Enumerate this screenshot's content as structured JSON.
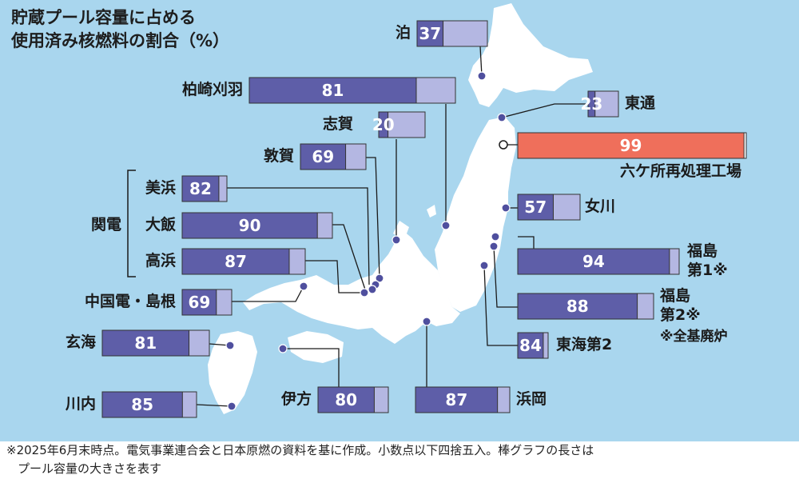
{
  "title_line1": "貯蔵プール容量に占める",
  "title_line2": "使用済み核燃料の割合（%）",
  "kanden_group_label": "関電",
  "footnote_scope": "※全基廃炉",
  "footer_line1": "※2025年6月末時点。電気事業連合会と日本原燃の資料を基に作成。小数点以下四捨五入。棒グラフの長さは",
  "footer_line2": "プール容量の大きさを表す",
  "colors": {
    "sea": "#a9d6ee",
    "land": "#ffffff",
    "used": "#5e5ea8",
    "free": "#b4b7e2",
    "highlight": "#ef6f5b"
  },
  "chart_data": {
    "type": "bar",
    "title": "貯蔵プール容量に占める使用済み核燃料の割合（%）",
    "unit": "%",
    "categories": [
      "泊",
      "柏崎刈羽",
      "志賀",
      "敦賀",
      "美浜",
      "大飯",
      "高浜",
      "中国電・島根",
      "玄海",
      "川内",
      "伊方",
      "東通",
      "六ケ所再処理工場",
      "女川",
      "福島第1※",
      "福島第2※",
      "東海第2",
      "浜岡"
    ],
    "values": [
      37,
      81,
      20,
      69,
      82,
      90,
      87,
      69,
      81,
      85,
      80,
      23,
      99,
      57,
      94,
      88,
      84,
      87
    ],
    "highlighted": "六ケ所再処理工場",
    "stacked": [
      "使用済み核燃料",
      "空き容量"
    ]
  }
}
